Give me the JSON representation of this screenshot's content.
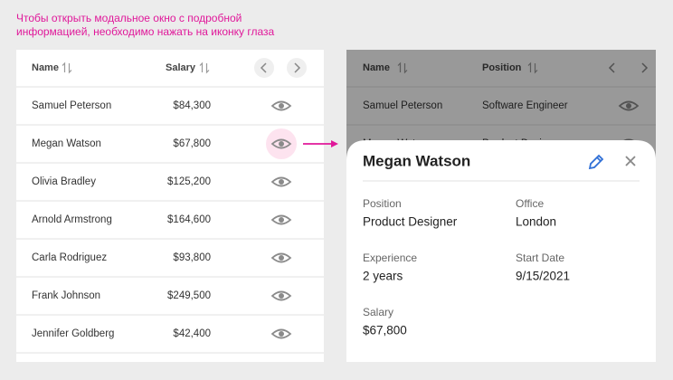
{
  "annotation": [
    "Чтобы открыть модальное окно с подробной",
    "информацией, необходимо нажать на иконку глаза"
  ],
  "table": {
    "columns": [
      "Name",
      "Salary"
    ],
    "rows": [
      [
        "Samuel Peterson",
        "$84,300"
      ],
      [
        "Megan Watson",
        "$67,800"
      ],
      [
        "Olivia Bradley",
        "$125,200"
      ],
      [
        "Arnold Armstrong",
        "$164,600"
      ],
      [
        "Carla Rodriguez",
        "$93,800"
      ],
      [
        "Frank Johnson",
        "$249,500"
      ],
      [
        "Jennifer Goldberg",
        "$42,400"
      ]
    ]
  },
  "background_table": {
    "columns": [
      "Name",
      "Position"
    ],
    "rows": [
      [
        "Samuel Peterson",
        "Software Engineer"
      ],
      [
        "Megan Watson",
        "Product Designer"
      ]
    ]
  },
  "modal": {
    "title": "Megan Watson",
    "fields": [
      {
        "label": "Position",
        "value": "Product Designer"
      },
      {
        "label": "Office",
        "value": "London"
      },
      {
        "label": "Experience",
        "value": "2 years"
      },
      {
        "label": "Start Date",
        "value": "9/15/2021"
      },
      {
        "label": "Salary",
        "value": "$67,800"
      }
    ]
  }
}
